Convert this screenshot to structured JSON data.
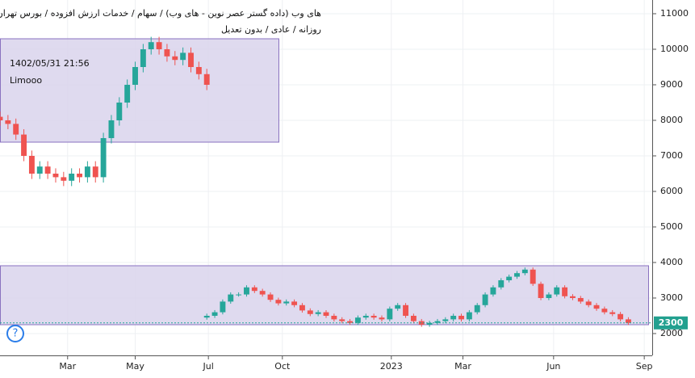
{
  "header": {
    "title": "های وب (داده گستر عصر نوین - های وب) / سهام / خدمات ارزش افزوده / بورس تهران",
    "subtitle": "روزانه / عادی / بدون تعدیل"
  },
  "notes": [
    "1402/05/31 21:56",
    "Limooo"
  ],
  "chart_data": {
    "type": "candlestick",
    "up_color": "#26a69a",
    "down_color": "#ef5350",
    "grid": true,
    "xlim": [
      0,
      82
    ],
    "ylim": [
      1386,
      11386
    ],
    "yticks": [
      2000,
      3000,
      4000,
      5000,
      6000,
      7000,
      8000,
      9000,
      10000,
      11000
    ],
    "xticks": [
      {
        "value": 8.5,
        "label": "Mar"
      },
      {
        "value": 17,
        "label": "May"
      },
      {
        "value": 26.2,
        "label": "Jul"
      },
      {
        "value": 35.5,
        "label": "Oct"
      },
      {
        "value": 49.2,
        "label": "2023"
      },
      {
        "value": 58.2,
        "label": "Mar"
      },
      {
        "value": 69.6,
        "label": "Jun"
      },
      {
        "value": 81,
        "label": "Sep"
      }
    ],
    "last_price": 2300,
    "series": [
      {
        "x": [
          0,
          1,
          2,
          3,
          4,
          5,
          6,
          7,
          8,
          9,
          10,
          11,
          12,
          13,
          14,
          15,
          16,
          17,
          18,
          19,
          20,
          21,
          22,
          23,
          24,
          25,
          26
        ],
        "open": [
          8100,
          8000,
          7900,
          7600,
          7000,
          6500,
          6700,
          6500,
          6400,
          6300,
          6500,
          6400,
          6700,
          6400,
          7500,
          8000,
          8500,
          9000,
          9500,
          10000,
          10200,
          10000,
          9800,
          9700,
          9900,
          9500,
          9300
        ],
        "high": [
          8250,
          8150,
          8050,
          7750,
          7150,
          6850,
          6850,
          6650,
          6550,
          6650,
          6650,
          6850,
          6850,
          7650,
          8150,
          8650,
          9150,
          9650,
          10150,
          10350,
          10350,
          10150,
          9950,
          10050,
          10050,
          9650,
          9450
        ],
        "low": [
          7850,
          7750,
          7450,
          6850,
          6350,
          6350,
          6350,
          6250,
          6150,
          6150,
          6250,
          6250,
          6250,
          6250,
          7350,
          7850,
          8350,
          8850,
          9350,
          9850,
          9850,
          9650,
          9550,
          9550,
          9350,
          9150,
          8850
        ],
        "close": [
          8000,
          7900,
          7600,
          7000,
          6500,
          6700,
          6500,
          6400,
          6300,
          6500,
          6400,
          6700,
          6400,
          7500,
          8000,
          8500,
          9000,
          9500,
          10000,
          10200,
          10000,
          9800,
          9700,
          9900,
          9500,
          9300,
          9000
        ]
      },
      {
        "x": [
          26,
          27,
          28,
          29,
          30,
          31,
          32,
          33,
          34,
          35,
          36,
          37,
          38,
          39,
          40,
          41,
          42,
          43,
          44,
          45,
          46,
          47,
          48,
          49,
          50,
          51,
          52,
          53,
          54,
          55,
          56,
          57,
          58,
          59,
          60,
          61,
          62,
          63,
          64,
          65,
          66,
          67,
          68,
          69,
          70,
          71,
          72,
          73,
          74,
          75,
          76,
          77,
          78,
          79
        ],
        "open": [
          2450,
          2500,
          2600,
          2900,
          3100,
          3100,
          3300,
          3200,
          3100,
          2950,
          2850,
          2900,
          2800,
          2650,
          2550,
          2600,
          2500,
          2400,
          2350,
          2300,
          2450,
          2500,
          2450,
          2400,
          2700,
          2800,
          2500,
          2350,
          2250,
          2300,
          2350,
          2400,
          2500,
          2400,
          2600,
          2800,
          3100,
          3300,
          3500,
          3600,
          3700,
          3800,
          3400,
          3000,
          3100,
          3300,
          3050,
          3000,
          2900,
          2800,
          2700,
          2600,
          2550,
          2400
        ],
        "high": [
          2560,
          2660,
          2960,
          3160,
          3160,
          3360,
          3360,
          3260,
          3160,
          3010,
          2960,
          2960,
          2860,
          2710,
          2660,
          2660,
          2560,
          2460,
          2410,
          2510,
          2560,
          2560,
          2510,
          2760,
          2860,
          2860,
          2560,
          2410,
          2360,
          2410,
          2460,
          2560,
          2560,
          2660,
          2860,
          3160,
          3360,
          3560,
          3660,
          3760,
          3860,
          3860,
          3460,
          3160,
          3360,
          3360,
          3110,
          3060,
          2960,
          2860,
          2760,
          2660,
          2610,
          2460
        ],
        "low": [
          2390,
          2440,
          2540,
          2840,
          3040,
          3040,
          3140,
          3040,
          2890,
          2790,
          2790,
          2740,
          2590,
          2490,
          2490,
          2440,
          2340,
          2290,
          2240,
          2240,
          2390,
          2390,
          2340,
          2340,
          2640,
          2440,
          2290,
          2190,
          2190,
          2240,
          2290,
          2340,
          2340,
          2340,
          2540,
          2740,
          3040,
          3240,
          3440,
          3540,
          3640,
          3340,
          2940,
          2940,
          3040,
          2990,
          2940,
          2840,
          2740,
          2640,
          2540,
          2490,
          2340,
          2240
        ],
        "close": [
          2500,
          2600,
          2900,
          3100,
          3100,
          3300,
          3200,
          3100,
          2950,
          2850,
          2900,
          2800,
          2650,
          2550,
          2600,
          2500,
          2400,
          2350,
          2300,
          2450,
          2500,
          2450,
          2400,
          2700,
          2800,
          2500,
          2350,
          2250,
          2300,
          2350,
          2400,
          2500,
          2400,
          2600,
          2800,
          3100,
          3300,
          3500,
          3600,
          3700,
          3800,
          3400,
          3000,
          3100,
          3300,
          3050,
          3000,
          2900,
          2800,
          2700,
          2600,
          2550,
          2400,
          2300
        ]
      }
    ]
  }
}
